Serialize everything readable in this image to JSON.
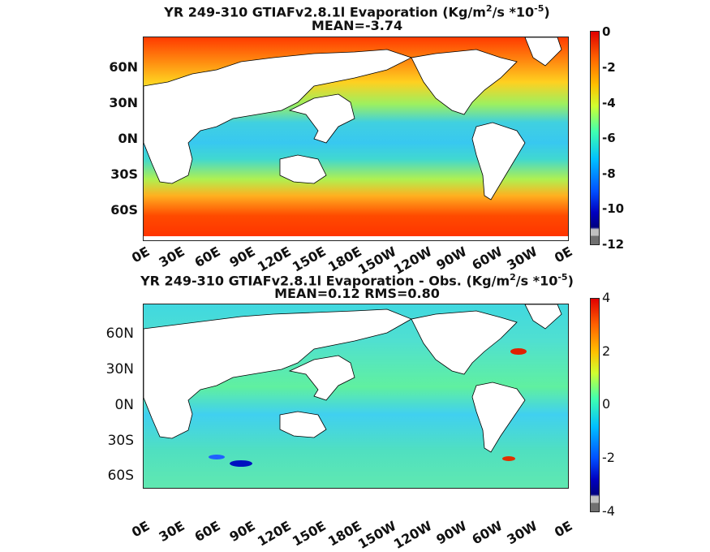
{
  "panel1": {
    "title_pre": "YR 249-310 GTIAFv2.8.1l  Evaporation (Kg/m",
    "title_sup1": "2",
    "title_mid": "/s *10",
    "title_sup2": "-5",
    "title_post": ")",
    "subtitle": "MEAN=-3.74",
    "lat_labels": [
      "60N",
      "30N",
      "0N",
      "30S",
      "60S"
    ],
    "lon_labels": [
      "0E",
      "30E",
      "60E",
      "90E",
      "120E",
      "150E",
      "180E",
      "150W",
      "120W",
      "90W",
      "60W",
      "30W",
      "0E"
    ],
    "colorbar_ticks": [
      "0",
      "-2",
      "-4",
      "-6",
      "-8",
      "-10",
      "-12"
    ]
  },
  "panel2": {
    "title_pre": "YR 249-310 GTIAFv2.8.1l Evaporation - Obs. (Kg/m",
    "title_sup1": "2",
    "title_mid": "/s *10",
    "title_sup2": "-5",
    "title_post": ")",
    "subtitle": "MEAN=0.12   RMS=0.80",
    "lat_labels": [
      "60N",
      "30N",
      "0N",
      "30S",
      "60S"
    ],
    "lon_labels": [
      "0E",
      "30E",
      "60E",
      "90E",
      "120E",
      "150E",
      "180E",
      "150W",
      "120W",
      "90W",
      "60W",
      "30W",
      "0E"
    ],
    "colorbar_ticks": [
      "4",
      "2",
      "0",
      "-2",
      "-4"
    ]
  },
  "chart_data": [
    {
      "type": "heatmap",
      "title": "YR 249-310 GTIAFv2.8.1l  Evaporation (Kg/m^2/s *10^-5)",
      "subtitle": "MEAN=-3.74",
      "colorbar_range": [
        -12,
        0
      ],
      "colorbar_ticks": [
        0,
        -2,
        -4,
        -6,
        -8,
        -10,
        -12
      ],
      "mean": -3.74,
      "colormap": "jet"
    },
    {
      "type": "heatmap",
      "title": "YR 249-310 GTIAFv2.8.1l Evaporation - Obs. (Kg/m^2/s *10^-5)",
      "subtitle": "MEAN=0.12   RMS=0.80",
      "colorbar_range": [
        -4,
        4
      ],
      "colorbar_ticks": [
        4,
        2,
        0,
        -2,
        -4
      ],
      "mean": 0.12,
      "rms": 0.8,
      "colormap": "jet"
    }
  ]
}
